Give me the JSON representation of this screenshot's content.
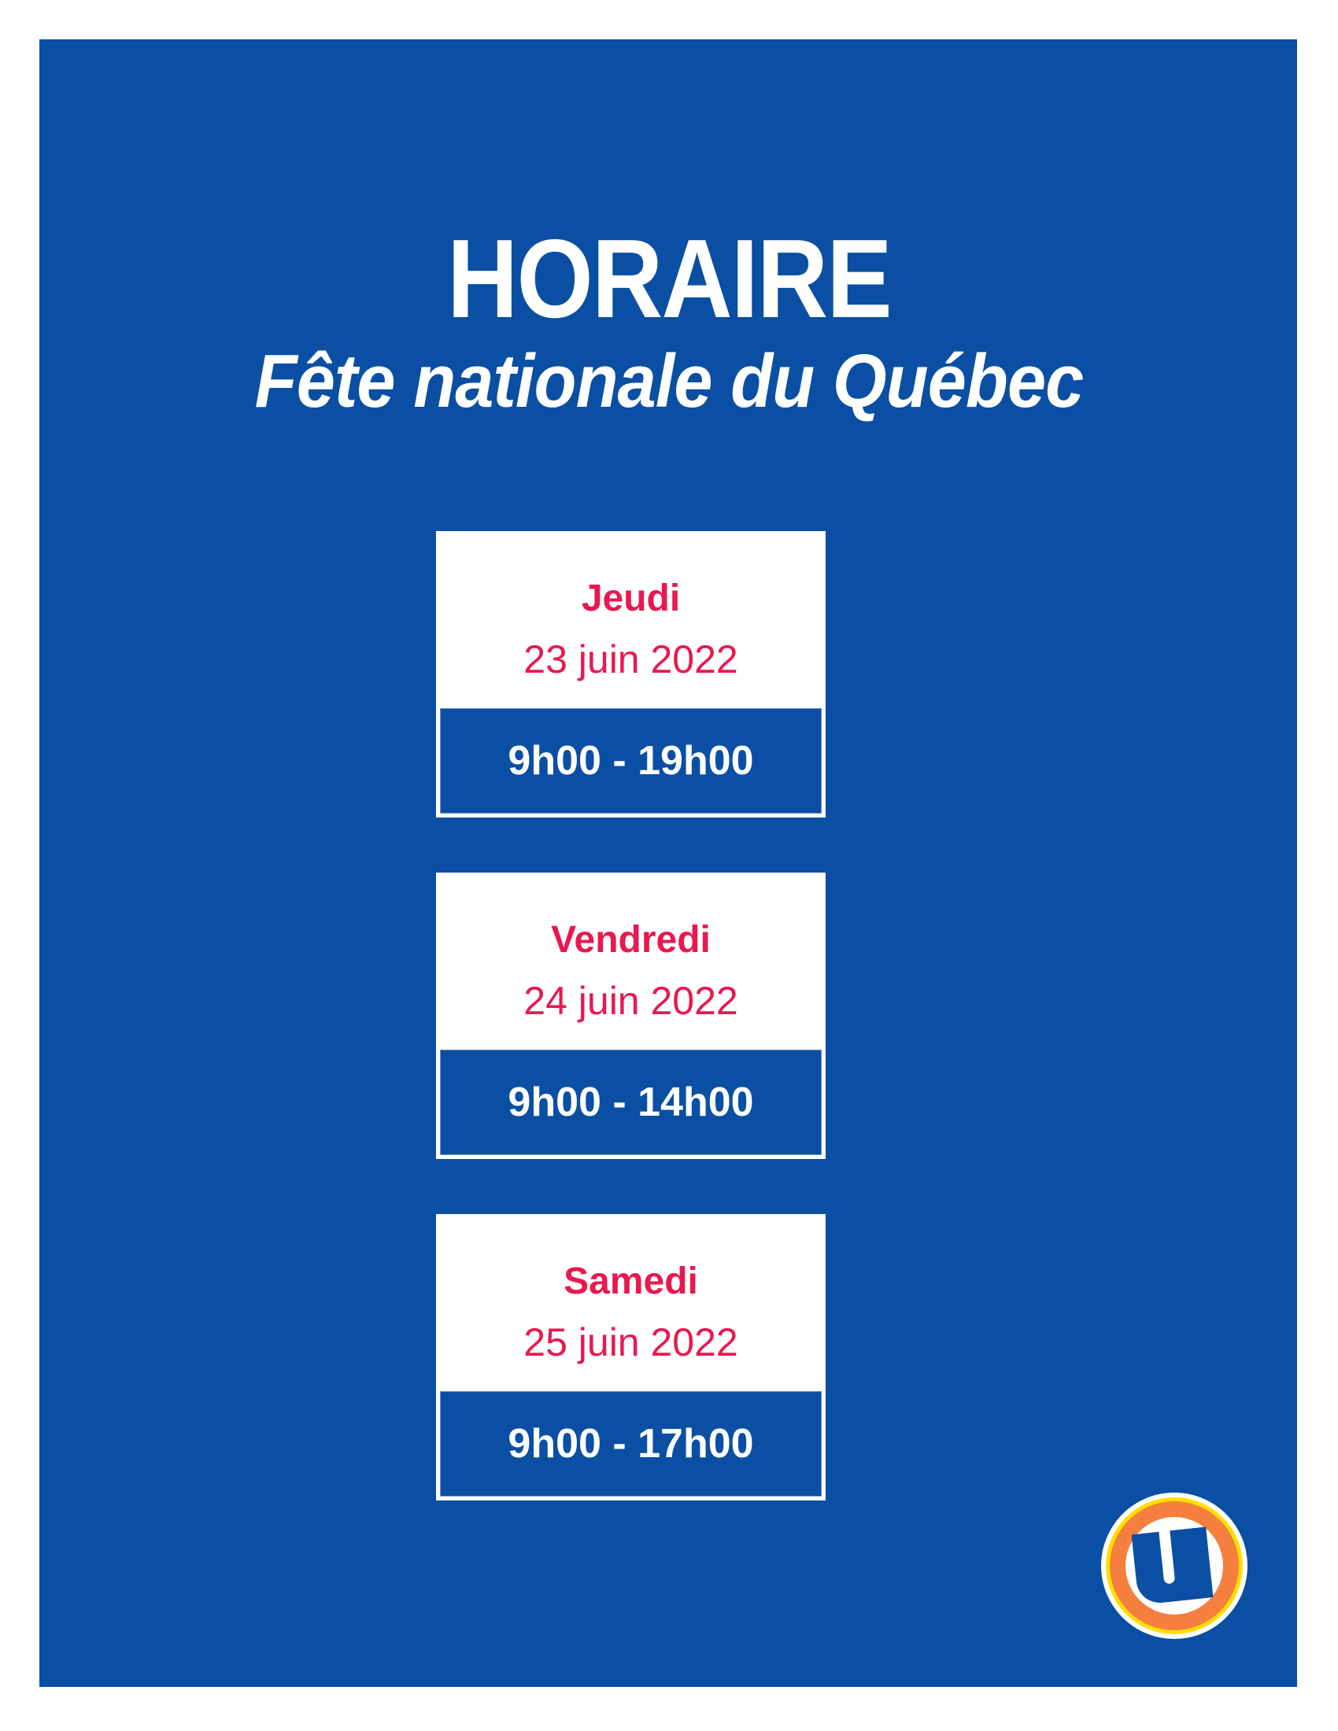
{
  "header": {
    "title": "HORAIRE",
    "subtitle": "Fête nationale du Québec"
  },
  "schedule": [
    {
      "day": "Jeudi",
      "date": "23 juin 2022",
      "hours": "9h00 - 19h00"
    },
    {
      "day": "Vendredi",
      "date": "24 juin 2022",
      "hours": "9h00 - 14h00"
    },
    {
      "day": "Samedi",
      "date": "25 juin 2022",
      "hours": "9h00 - 17h00"
    }
  ],
  "colors": {
    "background": "#0a4fa3",
    "accent": "#e8194f",
    "logo_ring": "#f47f3f",
    "logo_outer": "#ffde00"
  },
  "logo": {
    "icon": "u-logo-icon",
    "letter": "U"
  }
}
